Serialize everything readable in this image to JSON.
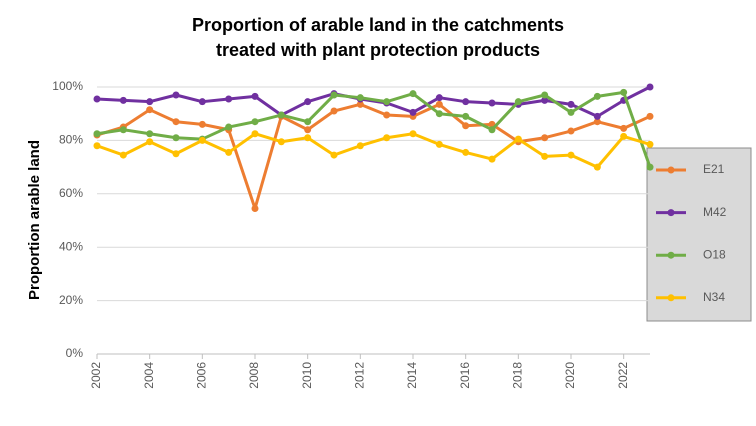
{
  "chart_data": {
    "type": "line",
    "title": [
      "Proportion of  arable land in the catchments",
      "treated with plant protection products"
    ],
    "y_label": "Proportion arable land",
    "x": [
      2002,
      2003,
      2004,
      2005,
      2006,
      2007,
      2008,
      2009,
      2010,
      2011,
      2012,
      2013,
      2014,
      2015,
      2016,
      2017,
      2018,
      2019,
      2020,
      2021,
      2022,
      2023
    ],
    "xlim": [
      2002,
      2023
    ],
    "xticks": [
      2002,
      2004,
      2006,
      2008,
      2010,
      2012,
      2014,
      2016,
      2018,
      2020,
      2022
    ],
    "ylim": [
      0,
      100
    ],
    "yticks": [
      {
        "value": 0,
        "label": "0%"
      },
      {
        "value": 20,
        "label": "20%"
      },
      {
        "value": 40,
        "label": "40%"
      },
      {
        "value": 60,
        "label": "60%"
      },
      {
        "value": 80,
        "label": "80%"
      },
      {
        "value": 100,
        "label": "100%"
      }
    ],
    "grid": true,
    "legend": "right",
    "series": [
      {
        "name": "E21",
        "color": "#ed7d31",
        "values": [
          82,
          85,
          91.5,
          87,
          86,
          84,
          54.5,
          89,
          84,
          91,
          93.5,
          89.5,
          89,
          93.5,
          85.5,
          86,
          79.5,
          81,
          83.5,
          87,
          84.5,
          89
        ]
      },
      {
        "name": "M42",
        "color": "#7030a0",
        "values": [
          95.5,
          95,
          94.5,
          97,
          94.5,
          95.5,
          96.5,
          89.5,
          94.5,
          97.5,
          95.5,
          94,
          90.5,
          96,
          94.5,
          94,
          93.5,
          95,
          93.5,
          89,
          95,
          100
        ]
      },
      {
        "name": "O18",
        "color": "#70ad47",
        "values": [
          82.5,
          84,
          82.5,
          81,
          80.5,
          85,
          87,
          89.5,
          87,
          97,
          96,
          94.5,
          97.5,
          90,
          89,
          84,
          94.5,
          97,
          90.5,
          96.5,
          98,
          70
        ]
      },
      {
        "name": "N34",
        "color": "#ffc000",
        "values": [
          78,
          74.5,
          79.5,
          75,
          80,
          75.5,
          82.5,
          79.5,
          81,
          74.5,
          78,
          81,
          82.5,
          78.5,
          75.5,
          73,
          80.5,
          74,
          74.5,
          70,
          81.5,
          78.5
        ]
      }
    ]
  }
}
